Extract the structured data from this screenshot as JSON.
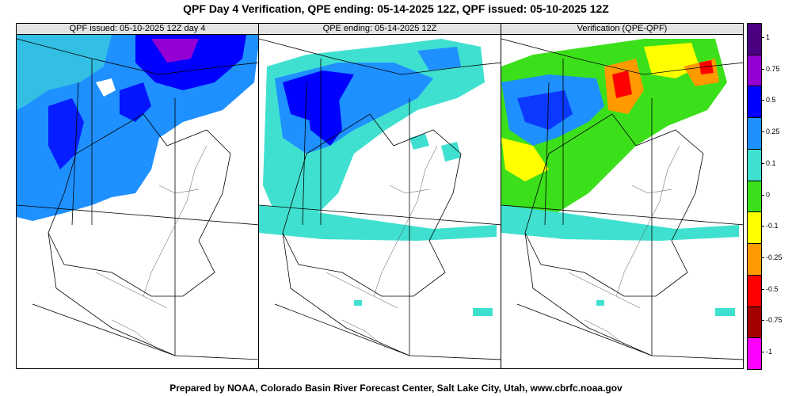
{
  "title": "QPF Day 4 Verification, QPE ending: 05-14-2025 12Z, QPF issued: 05-10-2025 12Z",
  "panels": [
    {
      "label": "QPF issued: 05-10-2025 12Z day 4"
    },
    {
      "label": "QPE ending: 05-14-2025 12Z"
    },
    {
      "label": "Verification (QPE-QPF)"
    }
  ],
  "colorbar": {
    "bins": [
      {
        "color": "#4b0082"
      },
      {
        "color": "#9400d3"
      },
      {
        "color": "#0000ff"
      },
      {
        "color": "#1e90ff"
      },
      {
        "color": "#40e0d0"
      },
      {
        "color": "#3ce01a"
      },
      {
        "color": "#ffff00"
      },
      {
        "color": "#ff9a00"
      },
      {
        "color": "#ff0000"
      },
      {
        "color": "#a50000"
      },
      {
        "color": "#ff00ff"
      }
    ],
    "labels": [
      "1",
      "0.75",
      "0.5",
      "0.25",
      "0.1",
      "0",
      "-0.1",
      "-0.25",
      "-0.5",
      "-0.75",
      "-1"
    ]
  },
  "footer": "Prepared by NOAA, Colorado Basin River Forecast Center, Salt Lake City, Utah, www.cbrfc.noaa.gov"
}
